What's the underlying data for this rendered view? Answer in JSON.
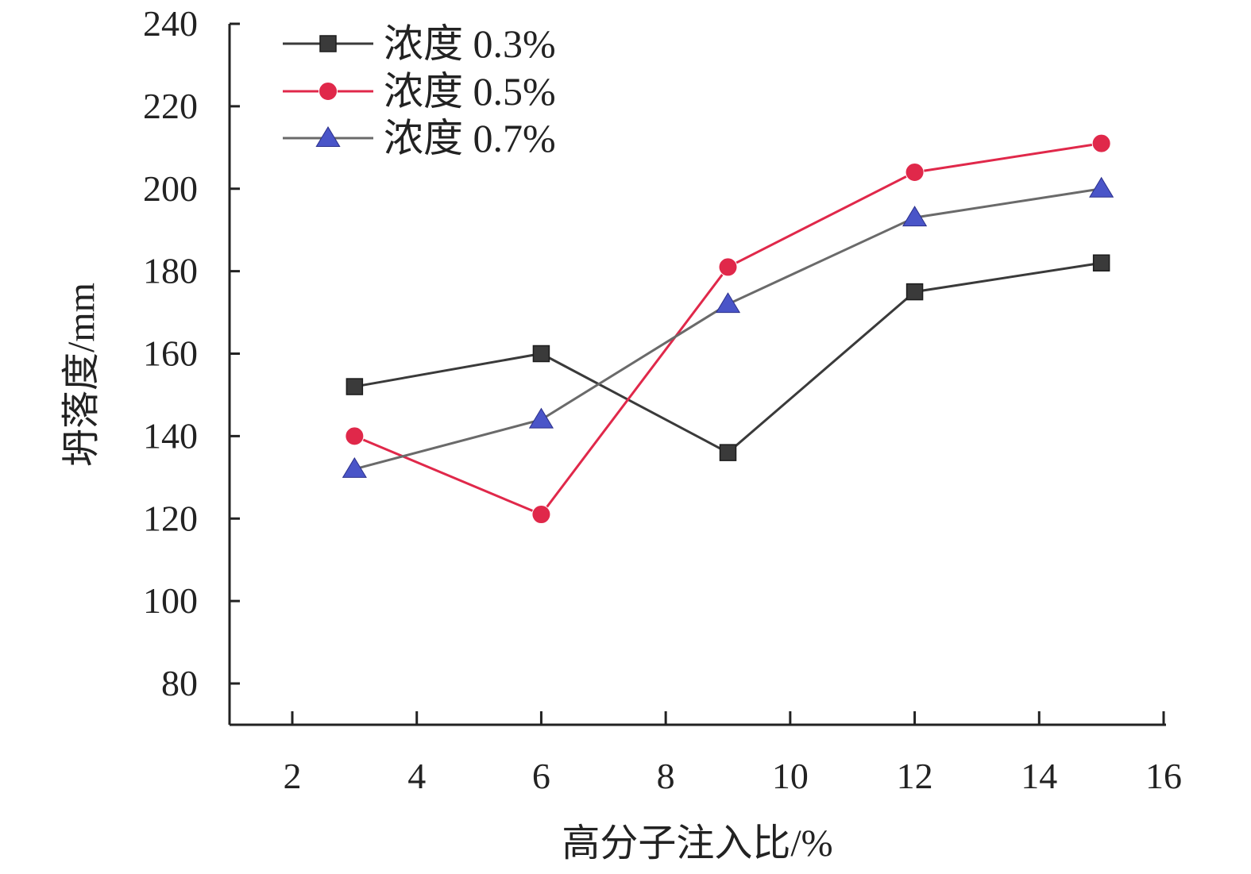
{
  "chart_data": {
    "type": "line",
    "title": "",
    "xlabel": "高分子注入比/%",
    "ylabel": "坍落度/mm",
    "xlim": [
      1,
      16
    ],
    "ylim": [
      70,
      240
    ],
    "x_ticks": [
      2,
      4,
      6,
      8,
      10,
      12,
      14,
      16
    ],
    "y_ticks": [
      80,
      100,
      120,
      140,
      160,
      180,
      200,
      220,
      240
    ],
    "grid": false,
    "legend_position": "top-left",
    "x": [
      3,
      6,
      9,
      12,
      15
    ],
    "series": [
      {
        "name": "浓度 0.3%",
        "marker": "square",
        "color": "#3a3a3a",
        "values": [
          152,
          160,
          136,
          175,
          182
        ]
      },
      {
        "name": "浓度 0.5%",
        "marker": "circle",
        "color": "#e0284a",
        "values": [
          140,
          121,
          181,
          204,
          211
        ]
      },
      {
        "name": "浓度 0.7%",
        "marker": "triangle",
        "color": "#4a55c8",
        "line_color": "#6a6a6a",
        "values": [
          132,
          144,
          172,
          193,
          200
        ]
      }
    ]
  }
}
